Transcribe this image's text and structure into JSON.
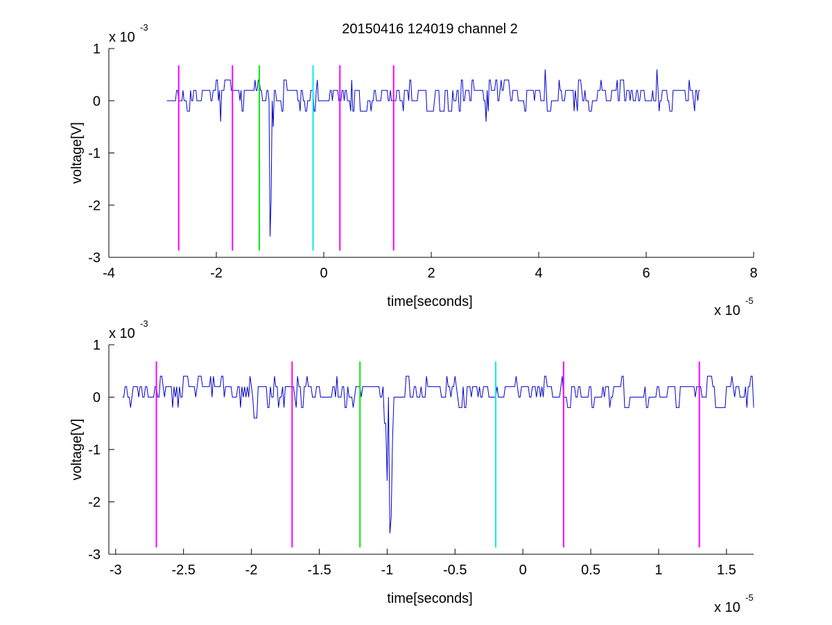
{
  "figure": {
    "title": "20150416 124019 channel 2",
    "trace_color": "#0000cc",
    "marker_colors": {
      "magenta": "#ff00ff",
      "green": "#00ee00",
      "cyan": "#00eeee"
    }
  },
  "chart_data": [
    {
      "type": "line",
      "title": "20150416 124019 channel 2",
      "xlabel": "time[seconds]",
      "ylabel": "voltage[V]",
      "x_exponent_label": "x 10",
      "x_exponent": "-5",
      "y_exponent_label": "x 10",
      "y_exponent": "-3",
      "xlim": [
        -4,
        8
      ],
      "ylim": [
        -3,
        1
      ],
      "xticks": [
        -4,
        -2,
        0,
        2,
        4,
        6,
        8
      ],
      "xtick_labels": [
        "-4",
        "-2",
        "0",
        "2",
        "4",
        "6",
        "8"
      ],
      "yticks": [
        -3,
        -2,
        -1,
        0,
        1
      ],
      "ytick_labels": [
        "-3",
        "-2",
        "-1",
        "0",
        "1"
      ],
      "grid": false,
      "series": [
        {
          "color": "#0000cc",
          "x_start": -2.92,
          "x_end": 7.0,
          "step": 0.02,
          "noise_levels": [
            -0.2,
            0,
            0.2,
            0.4
          ],
          "features": [
            {
              "x": -1.0,
              "y": -2.6
            },
            {
              "x": -0.98,
              "y": -1.9
            },
            {
              "x": -0.95,
              "y": -0.5
            },
            {
              "x": 4.12,
              "y": 0.6
            },
            {
              "x": 6.2,
              "y": 0.6
            },
            {
              "x": 3.03,
              "y": -0.4
            },
            {
              "x": -1.92,
              "y": -0.4
            }
          ]
        }
      ],
      "markers": [
        {
          "x": -2.7,
          "color": "magenta"
        },
        {
          "x": -1.7,
          "color": "magenta"
        },
        {
          "x": -1.2,
          "color": "green"
        },
        {
          "x": -0.2,
          "color": "cyan"
        },
        {
          "x": 0.3,
          "color": "magenta"
        },
        {
          "x": 1.3,
          "color": "magenta"
        }
      ],
      "marker_range": [
        -2.87,
        0.68
      ]
    },
    {
      "type": "line",
      "title": "",
      "xlabel": "time[seconds]",
      "ylabel": "voltage[V]",
      "x_exponent_label": "x 10",
      "x_exponent": "-5",
      "y_exponent_label": "x 10",
      "y_exponent": "-3",
      "xlim": [
        -3.05,
        1.7
      ],
      "ylim": [
        -3,
        1
      ],
      "xticks": [
        -3,
        -2.5,
        -2,
        -1.5,
        -1,
        -0.5,
        0,
        0.5,
        1,
        1.5
      ],
      "xtick_labels": [
        "-3",
        "-2.5",
        "-2",
        "-1.5",
        "-1",
        "-0.5",
        "0",
        "0.5",
        "1",
        "1.5"
      ],
      "yticks": [
        -3,
        -2,
        -1,
        0,
        1
      ],
      "ytick_labels": [
        "-3",
        "-2",
        "-1",
        "0",
        "1"
      ],
      "grid": false,
      "series": [
        {
          "color": "#0000cc",
          "x_start": -2.95,
          "x_end": 1.7,
          "step": 0.01,
          "noise_levels": [
            -0.2,
            0,
            0.2,
            0.4
          ],
          "features": [
            {
              "x": -0.98,
              "y": -2.6
            },
            {
              "x": -0.97,
              "y": -2.3
            },
            {
              "x": -1.0,
              "y": -1.6
            },
            {
              "x": -0.96,
              "y": -0.8
            },
            {
              "x": -1.02,
              "y": -0.5
            },
            {
              "x": -1.98,
              "y": -0.4
            },
            {
              "x": -2.3,
              "y": 0.4
            },
            {
              "x": -0.5,
              "y": 0.4
            },
            {
              "x": 1.36,
              "y": 0.4
            }
          ]
        }
      ],
      "markers": [
        {
          "x": -2.7,
          "color": "magenta"
        },
        {
          "x": -1.7,
          "color": "magenta"
        },
        {
          "x": -1.2,
          "color": "green"
        },
        {
          "x": -0.2,
          "color": "cyan"
        },
        {
          "x": 0.3,
          "color": "magenta"
        },
        {
          "x": 1.3,
          "color": "magenta"
        }
      ],
      "marker_range": [
        -2.87,
        0.68
      ]
    }
  ]
}
